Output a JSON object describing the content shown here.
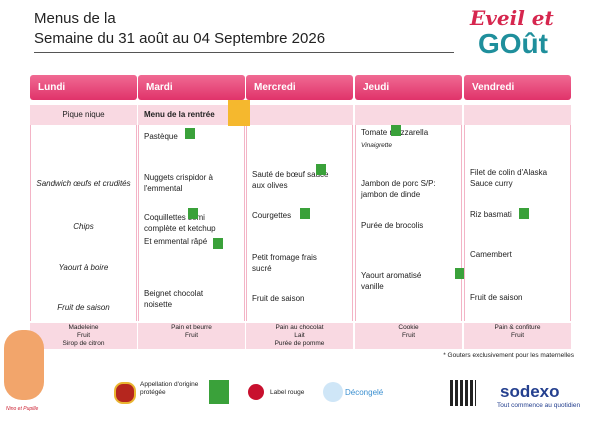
{
  "header": {
    "title_line1": "Menus de la",
    "title_line2": "Semaine du 31 août au 04 Septembre 2026"
  },
  "logo": {
    "line1": "Eveil et",
    "line2": "GOût"
  },
  "days": [
    {
      "name": "Lundi",
      "theme": "Pique nique",
      "dishes": [
        "Sandwich œufs et crudités",
        "Chips",
        "Yaourt à boire",
        "Fruit de saison"
      ],
      "gouter": [
        "Madeleine",
        "Fruit",
        "Sirop de citron"
      ]
    },
    {
      "name": "Mardi",
      "theme": "Menu de la rentrée",
      "dishes": [
        "Pastèque",
        "Nuggets crispidor à l'emmental",
        "Coquillettes semi complète et ketchup",
        "Et emmental râpé",
        "Beignet chocolat noisette"
      ],
      "gouter": [
        "Pain et beurre",
        "Fruit"
      ]
    },
    {
      "name": "Mercredi",
      "dishes": [
        "Sauté de bœuf sauce aux olives",
        "Courgettes",
        "Petit fromage frais sucré",
        "Fruit de saison"
      ],
      "gouter": [
        "Pain au chocolat",
        "Lait",
        "Purée de pomme"
      ]
    },
    {
      "name": "Jeudi",
      "dishes": [
        "Tomate mozzarella",
        "Vinaigrette",
        "Jambon de porc S/P: jambon de dinde",
        "Purée de brocolis",
        "Yaourt aromatisé vanille"
      ],
      "gouter": [
        "Cookie",
        "Fruit"
      ]
    },
    {
      "name": "Vendredi",
      "dishes": [
        "Filet de colin d'Alaska Sauce curry",
        "Riz basmati",
        "Camembert",
        "Fruit de saison"
      ],
      "gouter": [
        "Pain & confiture",
        "Fruit"
      ]
    }
  ],
  "footnote": "* Gouters exclusivement pour les maternelles",
  "legend": {
    "aop": "Appellation d'origine protégée",
    "label_rouge": "Label rouge",
    "decongele": "Décongelé",
    "mascot": "Nino et Pupille"
  },
  "brand": {
    "name": "sodexo",
    "tagline": "Tout commence au quotidien"
  }
}
